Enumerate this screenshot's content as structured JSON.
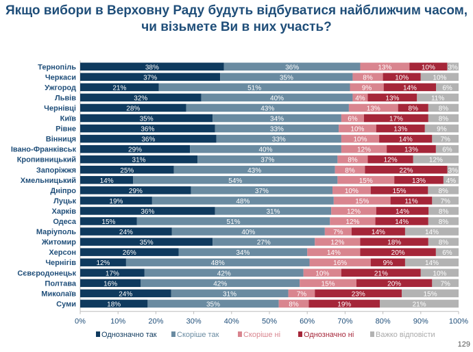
{
  "title_line1": "Якщо вибори в Верховну Раду будуть відбуватися найближчим часом,",
  "title_line2": "чи візьмете Ви в них участь?",
  "page_number": "129",
  "chart_data": {
    "type": "bar",
    "orientation": "horizontal",
    "stacked": true,
    "xlim": [
      0,
      100
    ],
    "x_ticks": [
      "0%",
      "10%",
      "20%",
      "30%",
      "40%",
      "50%",
      "60%",
      "70%",
      "80%",
      "90%",
      "100%"
    ],
    "legend_position": "bottom",
    "grid": false,
    "categories": [
      "Тернопіль",
      "Черкаси",
      "Ужгород",
      "Львів",
      "Чернівці",
      "Київ",
      "Рівне",
      "Вінниця",
      "Івано-Франківськ",
      "Кропивницький",
      "Запоріжжя",
      "Хмельницький",
      "Дніпро",
      "Луцьк",
      "Харків",
      "Одеса",
      "Маріуполь",
      "Житомир",
      "Херсон",
      "Чернігів",
      "Сєвєродонецьк",
      "Полтава",
      "Миколаїв",
      "Суми"
    ],
    "series": [
      {
        "name": "Однозначно так",
        "color": "#0f3a5e",
        "values": [
          38,
          37,
          21,
          32,
          28,
          35,
          36,
          36,
          29,
          31,
          25,
          14,
          29,
          19,
          36,
          15,
          24,
          35,
          26,
          12,
          17,
          16,
          24,
          18
        ]
      },
      {
        "name": "Скоріше так",
        "color": "#6a8ba1",
        "values": [
          36,
          35,
          51,
          40,
          43,
          34,
          33,
          33,
          40,
          37,
          43,
          54,
          37,
          48,
          31,
          51,
          40,
          27,
          34,
          48,
          42,
          42,
          31,
          35
        ]
      },
      {
        "name": "Скоріше ні",
        "color": "#d9858f",
        "values": [
          13,
          8,
          9,
          4,
          13,
          6,
          10,
          10,
          12,
          8,
          8,
          15,
          10,
          15,
          12,
          12,
          7,
          12,
          14,
          16,
          10,
          15,
          7,
          8
        ]
      },
      {
        "name": "Однозначно ні",
        "color": "#a52639",
        "values": [
          10,
          10,
          14,
          13,
          8,
          17,
          13,
          14,
          13,
          12,
          22,
          13,
          15,
          11,
          14,
          14,
          14,
          18,
          20,
          9,
          21,
          20,
          23,
          19
        ]
      },
      {
        "name": "Важко відповісти",
        "color": "#b3b3b3",
        "values": [
          3,
          10,
          6,
          11,
          8,
          8,
          9,
          7,
          6,
          12,
          3,
          4,
          8,
          7,
          8,
          8,
          14,
          8,
          6,
          14,
          10,
          7,
          15,
          21
        ]
      }
    ]
  }
}
